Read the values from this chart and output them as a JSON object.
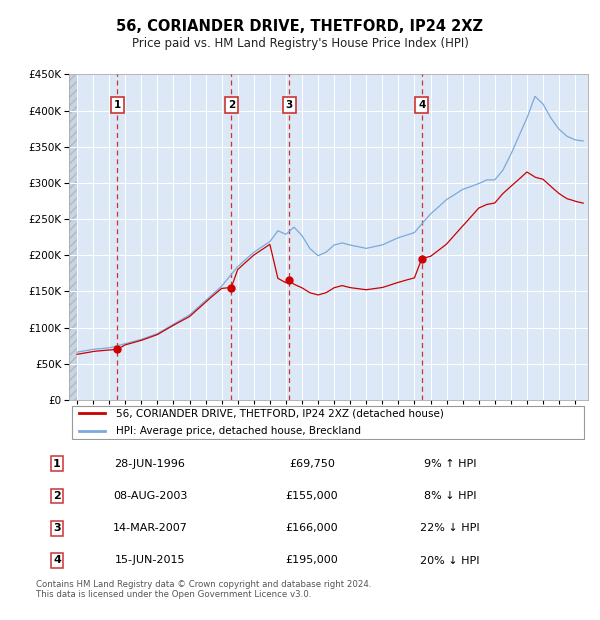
{
  "title": "56, CORIANDER DRIVE, THETFORD, IP24 2XZ",
  "subtitle": "Price paid vs. HM Land Registry's House Price Index (HPI)",
  "footer": "Contains HM Land Registry data © Crown copyright and database right 2024.\nThis data is licensed under the Open Government Licence v3.0.",
  "legend_line1": "56, CORIANDER DRIVE, THETFORD, IP24 2XZ (detached house)",
  "legend_line2": "HPI: Average price, detached house, Breckland",
  "sales": [
    {
      "num": 1,
      "date": "28-JUN-1996",
      "price": 69750,
      "pct": "9%",
      "dir": "↑"
    },
    {
      "num": 2,
      "date": "08-AUG-2003",
      "price": 155000,
      "pct": "8%",
      "dir": "↓"
    },
    {
      "num": 3,
      "date": "14-MAR-2007",
      "price": 166000,
      "pct": "22%",
      "dir": "↓"
    },
    {
      "num": 4,
      "date": "15-JUN-2015",
      "price": 195000,
      "pct": "20%",
      "dir": "↓"
    }
  ],
  "sale_dates": [
    1996.49,
    2003.6,
    2007.2,
    2015.46
  ],
  "sale_prices": [
    69750,
    155000,
    166000,
    195000
  ],
  "hpi_color": "#7aaadd",
  "price_color": "#cc0000",
  "vline_color": "#cc3333",
  "bg_color": "#dce8f5",
  "ylim": [
    0,
    450000
  ],
  "yticks": [
    0,
    50000,
    100000,
    150000,
    200000,
    250000,
    300000,
    350000,
    400000,
    450000
  ],
  "xlim_left": 1993.5,
  "xlim_right": 2025.8
}
